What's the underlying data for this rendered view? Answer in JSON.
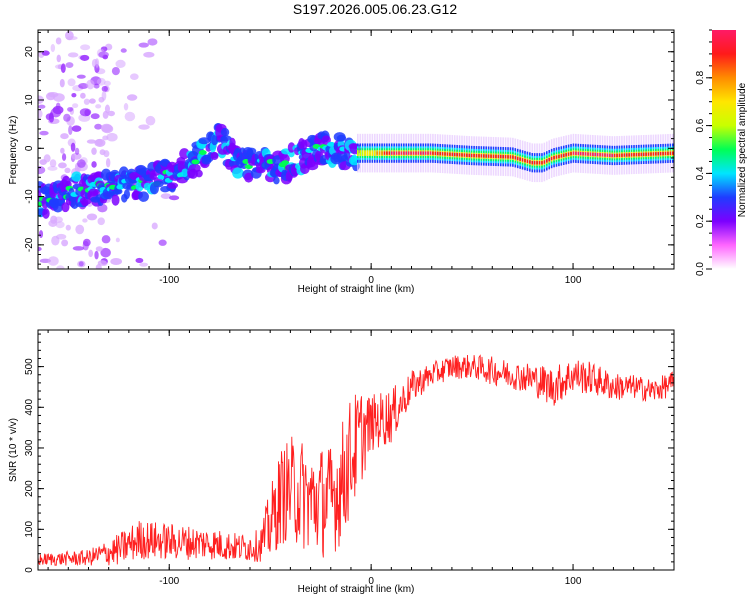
{
  "figure_title": "S197.2026.005.06.23.G12",
  "colorbar": {
    "label": "Normalized spectral amplitude",
    "range": [
      0.0,
      1.0
    ],
    "ticks": [
      0.0,
      0.2,
      0.4,
      0.6,
      0.8
    ],
    "tick_labels": [
      "0.0",
      "0.2",
      "0.4",
      "0.6",
      "0.8"
    ],
    "colors": [
      "#ffffff",
      "#ff66ff",
      "#7b00ff",
      "#1f3cff",
      "#00e5ff",
      "#00ff55",
      "#c8ff00",
      "#ffe600",
      "#ff8c00",
      "#ff1a1a",
      "#ff1a66"
    ]
  },
  "chart_data": [
    {
      "type": "heatmap",
      "title": "S197.2026.005.06.23.G12",
      "xlabel": "Height of straight line (km)",
      "ylabel": "Frequency (Hz)",
      "xlim": [
        -165,
        150
      ],
      "ylim": [
        -25,
        24.5
      ],
      "xticks": [
        -100,
        0,
        100
      ],
      "xtick_labels": [
        "-100",
        "0",
        "100"
      ],
      "yticks": [
        -20,
        -10,
        0,
        10,
        20
      ],
      "ytick_labels": [
        "-20",
        "-10",
        "0",
        "10",
        "20"
      ],
      "ridge_x": [
        -165,
        -150,
        -130,
        -110,
        -95,
        -85,
        -75,
        -65,
        -55,
        -45,
        -35,
        -25,
        -20,
        -10,
        0,
        10,
        30,
        50,
        70,
        80,
        85,
        90,
        100,
        120,
        150
      ],
      "ridge_freq": [
        -11,
        -9,
        -8,
        -7,
        -5,
        -2,
        2,
        -4,
        -3,
        -4,
        -2,
        0,
        0,
        -1,
        -1,
        -1,
        -1,
        -1.5,
        -1.8,
        -3,
        -3,
        -2,
        -1,
        -1.5,
        -1
      ],
      "ridge_amplitude": [
        0.3,
        0.3,
        0.3,
        0.35,
        0.35,
        0.35,
        0.35,
        0.35,
        0.35,
        0.35,
        0.35,
        0.35,
        0.35,
        0.55,
        0.7,
        0.95,
        0.95,
        0.9,
        0.95,
        0.9,
        0.9,
        0.9,
        0.95,
        0.95,
        0.9
      ],
      "noise_region_x": [
        -165,
        -130
      ]
    },
    {
      "type": "line",
      "xlabel": "Height of straight line (km)",
      "ylabel": "SNR (10 * v/v)",
      "xlim": [
        -165,
        150
      ],
      "ylim": [
        0,
        590
      ],
      "xticks": [
        -100,
        0,
        100
      ],
      "xtick_labels": [
        "-100",
        "0",
        "100"
      ],
      "yticks": [
        0,
        100,
        200,
        300,
        400,
        500
      ],
      "ytick_labels": [
        "0",
        "100",
        "200",
        "300",
        "400",
        "500"
      ],
      "series": [
        {
          "name": "SNR",
          "color": "#ff2020",
          "x": [
            -165,
            -140,
            -125,
            -115,
            -100,
            -80,
            -65,
            -55,
            -50,
            -45,
            -40,
            -35,
            -30,
            -25,
            -20,
            -15,
            -10,
            -5,
            0,
            5,
            10,
            15,
            20,
            30,
            40,
            50,
            60,
            70,
            80,
            90,
            100,
            110,
            120,
            130,
            140,
            150
          ],
          "mean": [
            25,
            30,
            50,
            75,
            70,
            65,
            55,
            60,
            110,
            180,
            200,
            190,
            170,
            170,
            170,
            210,
            280,
            330,
            360,
            370,
            380,
            410,
            450,
            480,
            500,
            500,
            490,
            480,
            470,
            450,
            480,
            470,
            450,
            450,
            440,
            460
          ],
          "spread": [
            15,
            20,
            40,
            50,
            45,
            40,
            35,
            40,
            90,
            120,
            130,
            140,
            130,
            140,
            140,
            150,
            150,
            120,
            70,
            70,
            70,
            50,
            40,
            30,
            30,
            30,
            35,
            35,
            40,
            50,
            45,
            40,
            35,
            30,
            30,
            30
          ]
        }
      ]
    }
  ]
}
